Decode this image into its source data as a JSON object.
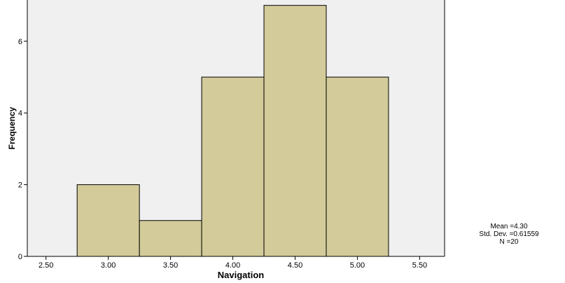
{
  "chart_data": {
    "type": "bar",
    "title": "",
    "xlabel": "Navigation",
    "ylabel": "Frequency",
    "bins": [
      {
        "start": 2.75,
        "end": 3.25,
        "value": 2
      },
      {
        "start": 3.25,
        "end": 3.75,
        "value": 1
      },
      {
        "start": 3.75,
        "end": 4.25,
        "value": 5
      },
      {
        "start": 4.25,
        "end": 4.75,
        "value": 7
      },
      {
        "start": 4.75,
        "end": 5.25,
        "value": 5
      }
    ],
    "xlim": [
      2.35,
      5.7
    ],
    "ylim": [
      0,
      7.15
    ],
    "xticks": [
      "2.50",
      "3.00",
      "3.50",
      "4.00",
      "4.50",
      "5.00",
      "5.50"
    ],
    "yticks": [
      "0",
      "2",
      "4",
      "6"
    ],
    "grid": false,
    "colors": {
      "bar_fill": "#d3cb9a",
      "bar_stroke": "#000000",
      "plot_bg": "#f0f0f0"
    }
  },
  "stats": {
    "mean": "Mean =4.30",
    "std_dev": "Std. Dev. =0.61559",
    "n": "N =20"
  }
}
